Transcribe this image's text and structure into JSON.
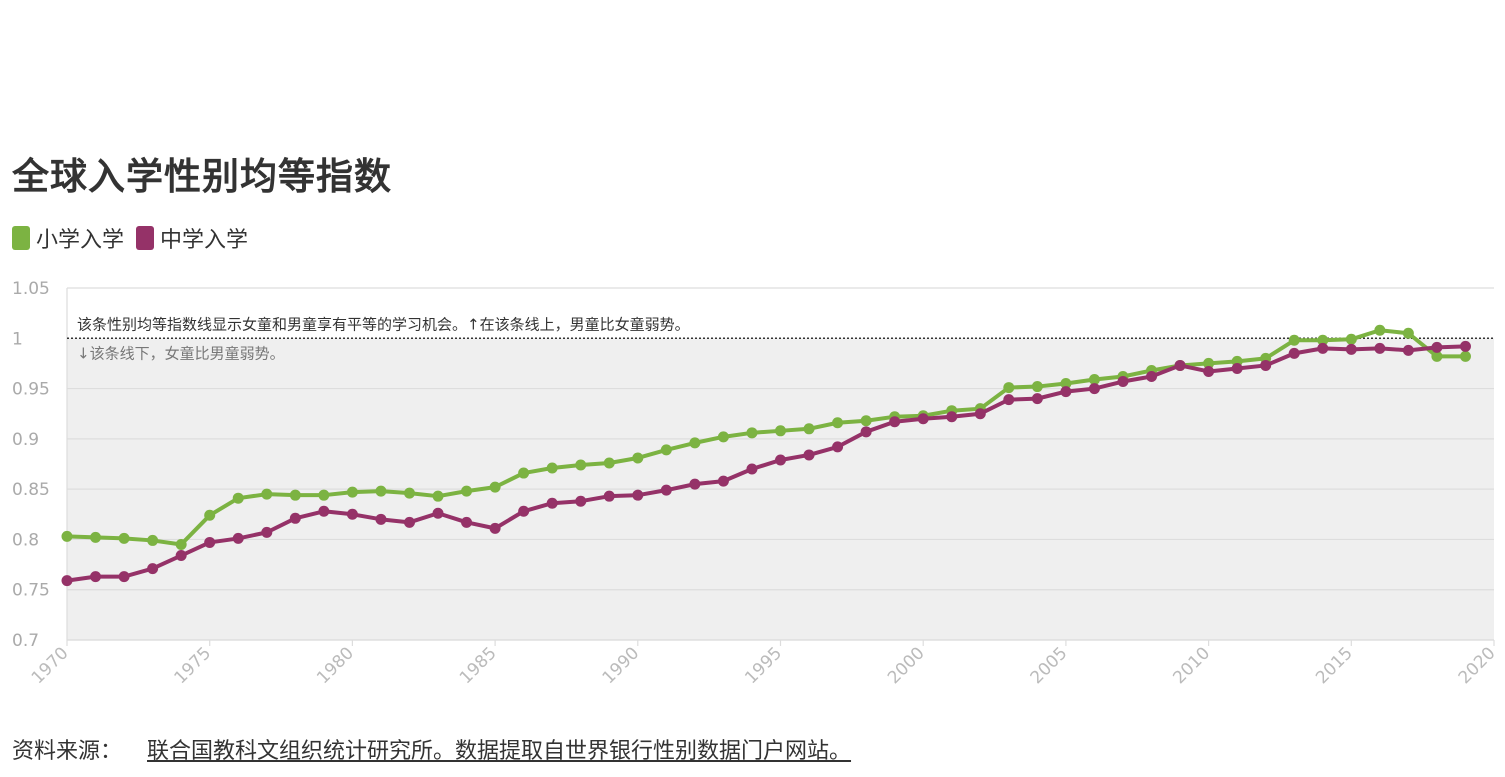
{
  "title": "全球入学性别均等指数",
  "legend": [
    {
      "label": "小学入学",
      "color": "#7cb342"
    },
    {
      "label": "中学入学",
      "color": "#953268"
    }
  ],
  "source": {
    "label": "资料来源：",
    "link_text": "联合国教科文组织统计研究所。数据提取自世界银行性别数据门户网站。"
  },
  "chart_data": {
    "type": "line",
    "annotation_above": "该条性别均等指数线显示女童和男童享有平等的学习机会。↑在该条线上，男童比女童弱势。",
    "annotation_below": "↓该条线下，女童比男童弱势。",
    "reference_value": 1,
    "ylim": [
      0.7,
      1.05
    ],
    "xlim": [
      1970,
      2020
    ],
    "y_ticks": [
      "0.7",
      "0.75",
      "0.8",
      "0.85",
      "0.9",
      "0.95",
      "1",
      "1.05"
    ],
    "x_ticks": [
      "1970",
      "1975",
      "1980",
      "1985",
      "1990",
      "1995",
      "2000",
      "2005",
      "2010",
      "2015",
      "2020"
    ],
    "grid": true,
    "x": [
      1970,
      1971,
      1972,
      1973,
      1974,
      1975,
      1976,
      1977,
      1978,
      1979,
      1980,
      1981,
      1982,
      1983,
      1984,
      1985,
      1986,
      1987,
      1988,
      1989,
      1990,
      1991,
      1992,
      1993,
      1994,
      1995,
      1996,
      1997,
      1998,
      1999,
      2000,
      2001,
      2002,
      2003,
      2004,
      2005,
      2006,
      2007,
      2008,
      2009,
      2010,
      2011,
      2012,
      2013,
      2014,
      2015,
      2016,
      2017,
      2018,
      2019
    ],
    "series": [
      {
        "name": "小学入学",
        "color": "#7cb342",
        "values": [
          0.803,
          0.802,
          0.801,
          0.799,
          0.795,
          0.824,
          0.841,
          0.845,
          0.844,
          0.844,
          0.847,
          0.848,
          0.846,
          0.843,
          0.848,
          0.852,
          0.866,
          0.871,
          0.874,
          0.876,
          0.881,
          0.889,
          0.896,
          0.902,
          0.906,
          0.908,
          0.91,
          0.916,
          0.918,
          0.922,
          0.923,
          0.928,
          0.93,
          0.951,
          0.952,
          0.955,
          0.959,
          0.962,
          0.968,
          0.973,
          0.975,
          0.977,
          0.98,
          0.998,
          0.998,
          0.999,
          1.008,
          1.005,
          0.982,
          0.982
        ]
      },
      {
        "name": "中学入学",
        "color": "#953268",
        "values": [
          0.759,
          0.763,
          0.763,
          0.771,
          0.784,
          0.797,
          0.801,
          0.807,
          0.821,
          0.828,
          0.825,
          0.82,
          0.817,
          0.826,
          0.817,
          0.811,
          0.828,
          0.836,
          0.838,
          0.843,
          0.844,
          0.849,
          0.855,
          0.858,
          0.87,
          0.879,
          0.884,
          0.892,
          0.907,
          0.917,
          0.92,
          0.922,
          0.925,
          0.939,
          0.94,
          0.947,
          0.95,
          0.957,
          0.962,
          0.973,
          0.967,
          0.97,
          0.973,
          0.985,
          0.99,
          0.989,
          0.99,
          0.988,
          0.991,
          0.992
        ]
      }
    ]
  }
}
